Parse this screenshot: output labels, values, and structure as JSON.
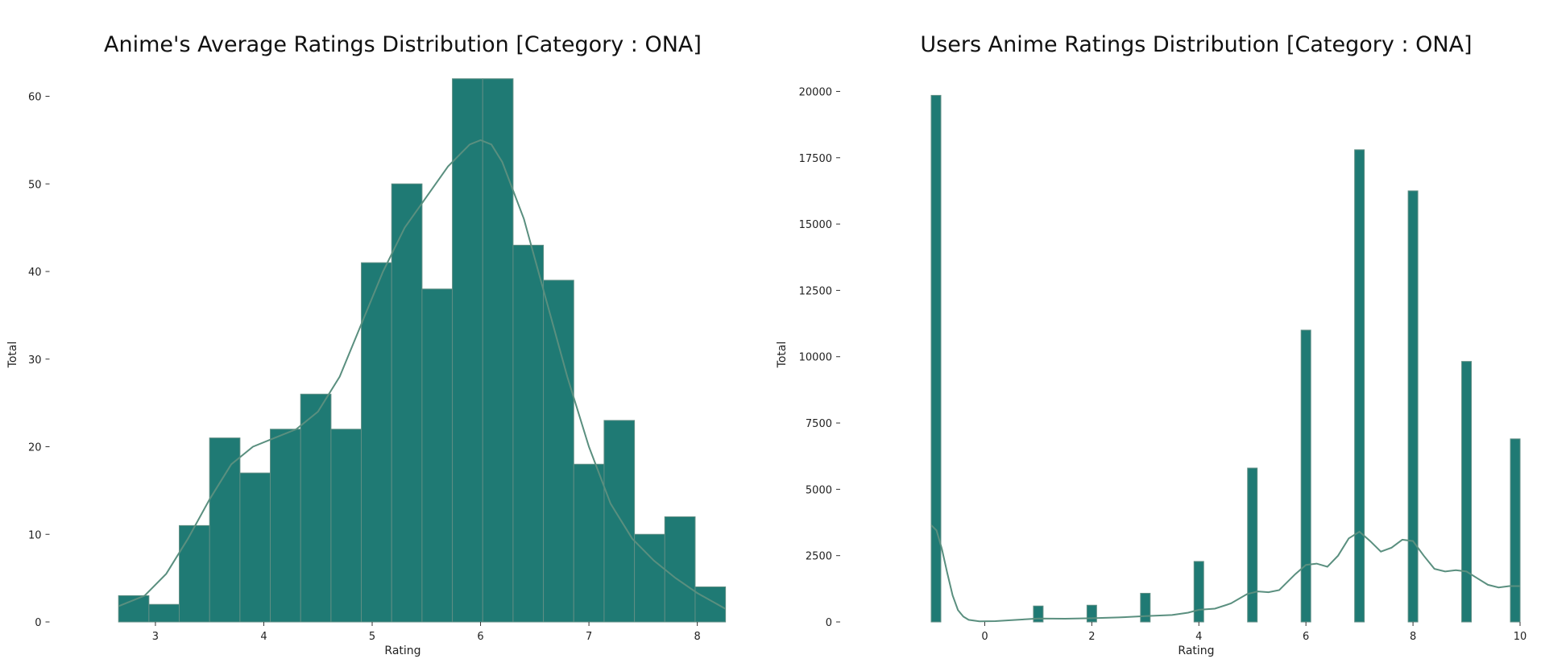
{
  "chart_data": [
    {
      "type": "histogram",
      "title": "Anime's Average Ratings Distribution [Category : ONA]",
      "xlabel": "Rating",
      "ylabel": "Total",
      "xlim": [
        2.64,
        8.3
      ],
      "ylim": [
        0,
        64
      ],
      "xticks": [
        3,
        4,
        5,
        6,
        7,
        8
      ],
      "yticks": [
        0,
        10,
        20,
        30,
        40,
        50,
        60
      ],
      "bin_start": 2.66,
      "bin_width": 0.28,
      "values": [
        3,
        2,
        11,
        21,
        17,
        22,
        26,
        22,
        41,
        50,
        38,
        62,
        62,
        43,
        39,
        18,
        23,
        10,
        12,
        4
      ],
      "kde": {
        "x": [
          2.66,
          2.9,
          3.1,
          3.3,
          3.5,
          3.7,
          3.9,
          4.1,
          4.3,
          4.5,
          4.7,
          4.9,
          5.1,
          5.3,
          5.5,
          5.7,
          5.9,
          6.0,
          6.1,
          6.2,
          6.4,
          6.6,
          6.8,
          7.0,
          7.2,
          7.4,
          7.6,
          7.8,
          8.0,
          8.26
        ],
        "y": [
          1.8,
          3,
          5.5,
          9.5,
          14,
          18,
          20,
          21,
          22,
          24,
          28,
          34,
          40,
          45,
          48.5,
          52,
          54.5,
          55,
          54.5,
          52.5,
          46,
          37,
          28,
          20,
          13.5,
          9.5,
          7,
          5,
          3.3,
          1.5
        ]
      },
      "grid": false,
      "legend": false
    },
    {
      "type": "histogram",
      "title": "Users Anime Ratings Distribution [Category : ONA]",
      "xlabel": "Rating",
      "ylabel": "Total",
      "xlim": [
        -1,
        10
      ],
      "ylim": [
        0,
        20500
      ],
      "xticks": [
        0,
        2,
        4,
        6,
        8,
        10
      ],
      "yticks": [
        0,
        2500,
        5000,
        7500,
        10000,
        12500,
        15000,
        17500,
        20000
      ],
      "categories": [
        -1,
        1,
        2,
        3,
        4,
        5,
        6,
        7,
        8,
        9,
        10
      ],
      "values": [
        19850,
        600,
        630,
        1080,
        2280,
        5800,
        11000,
        17800,
        16250,
        9820,
        6900
      ],
      "bar_width": 0.18,
      "kde": {
        "x": [
          -1,
          -0.9,
          -0.8,
          -0.7,
          -0.6,
          -0.5,
          -0.4,
          -0.3,
          -0.1,
          0.2,
          0.6,
          1.0,
          1.5,
          2.0,
          2.5,
          3.0,
          3.5,
          3.8,
          4.0,
          4.3,
          4.6,
          4.9,
          5.1,
          5.3,
          5.5,
          5.8,
          6.0,
          6.2,
          6.4,
          6.6,
          6.8,
          7.0,
          7.2,
          7.4,
          7.6,
          7.8,
          8.0,
          8.2,
          8.4,
          8.6,
          8.8,
          9.0,
          9.2,
          9.4,
          9.6,
          9.8,
          10.0
        ],
        "y": [
          3650,
          3450,
          2750,
          1850,
          1000,
          450,
          200,
          80,
          20,
          30,
          80,
          130,
          120,
          140,
          170,
          220,
          260,
          350,
          460,
          500,
          700,
          1050,
          1150,
          1120,
          1200,
          1800,
          2150,
          2200,
          2080,
          2500,
          3150,
          3400,
          3050,
          2650,
          2800,
          3100,
          3050,
          2500,
          2000,
          1900,
          1950,
          1900,
          1650,
          1400,
          1300,
          1350,
          1350
        ]
      },
      "grid": false,
      "legend": false
    }
  ]
}
